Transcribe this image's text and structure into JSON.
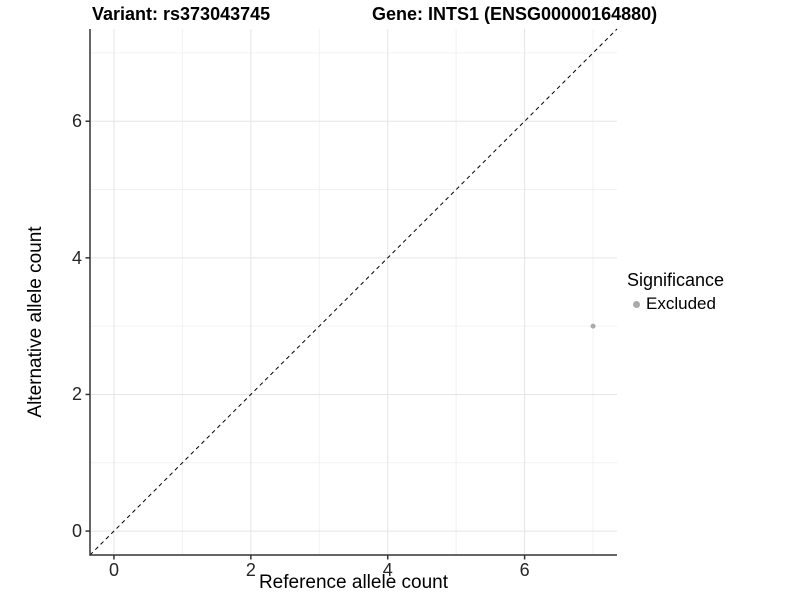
{
  "title": {
    "variant": "Variant: rs373043745",
    "gene": "Gene: INTS1 (ENSG00000164880)"
  },
  "legend": {
    "title": "Significance",
    "items": [
      {
        "label": "Excluded",
        "color": "#aaaaaa"
      }
    ]
  },
  "chart_data": {
    "type": "scatter",
    "xlabel": "Reference allele count",
    "ylabel": "Alternative allele count",
    "xlim": [
      -0.35,
      7.35
    ],
    "ylim": [
      -0.35,
      7.35
    ],
    "x_ticks": [
      0,
      2,
      4,
      6
    ],
    "y_ticks": [
      0,
      2,
      4,
      6
    ],
    "x_minor_grid": [
      1,
      3,
      5,
      7
    ],
    "y_minor_grid": [
      1,
      3,
      5,
      7
    ],
    "grid": "on",
    "legend_position": "right",
    "series": [
      {
        "name": "Excluded",
        "color": "#aaaaaa",
        "points": [
          {
            "x": 7,
            "y": 3
          }
        ]
      }
    ],
    "reference_line": {
      "kind": "identity",
      "slope": 1,
      "intercept": 0,
      "style": "dashed",
      "color": "#000000"
    }
  },
  "style": {
    "grid_major_color": "#e5e5e5",
    "grid_minor_color": "#f2f2f2",
    "axis_line_color": "#333333",
    "point_color": "#aaaaaa",
    "background": "#ffffff"
  }
}
